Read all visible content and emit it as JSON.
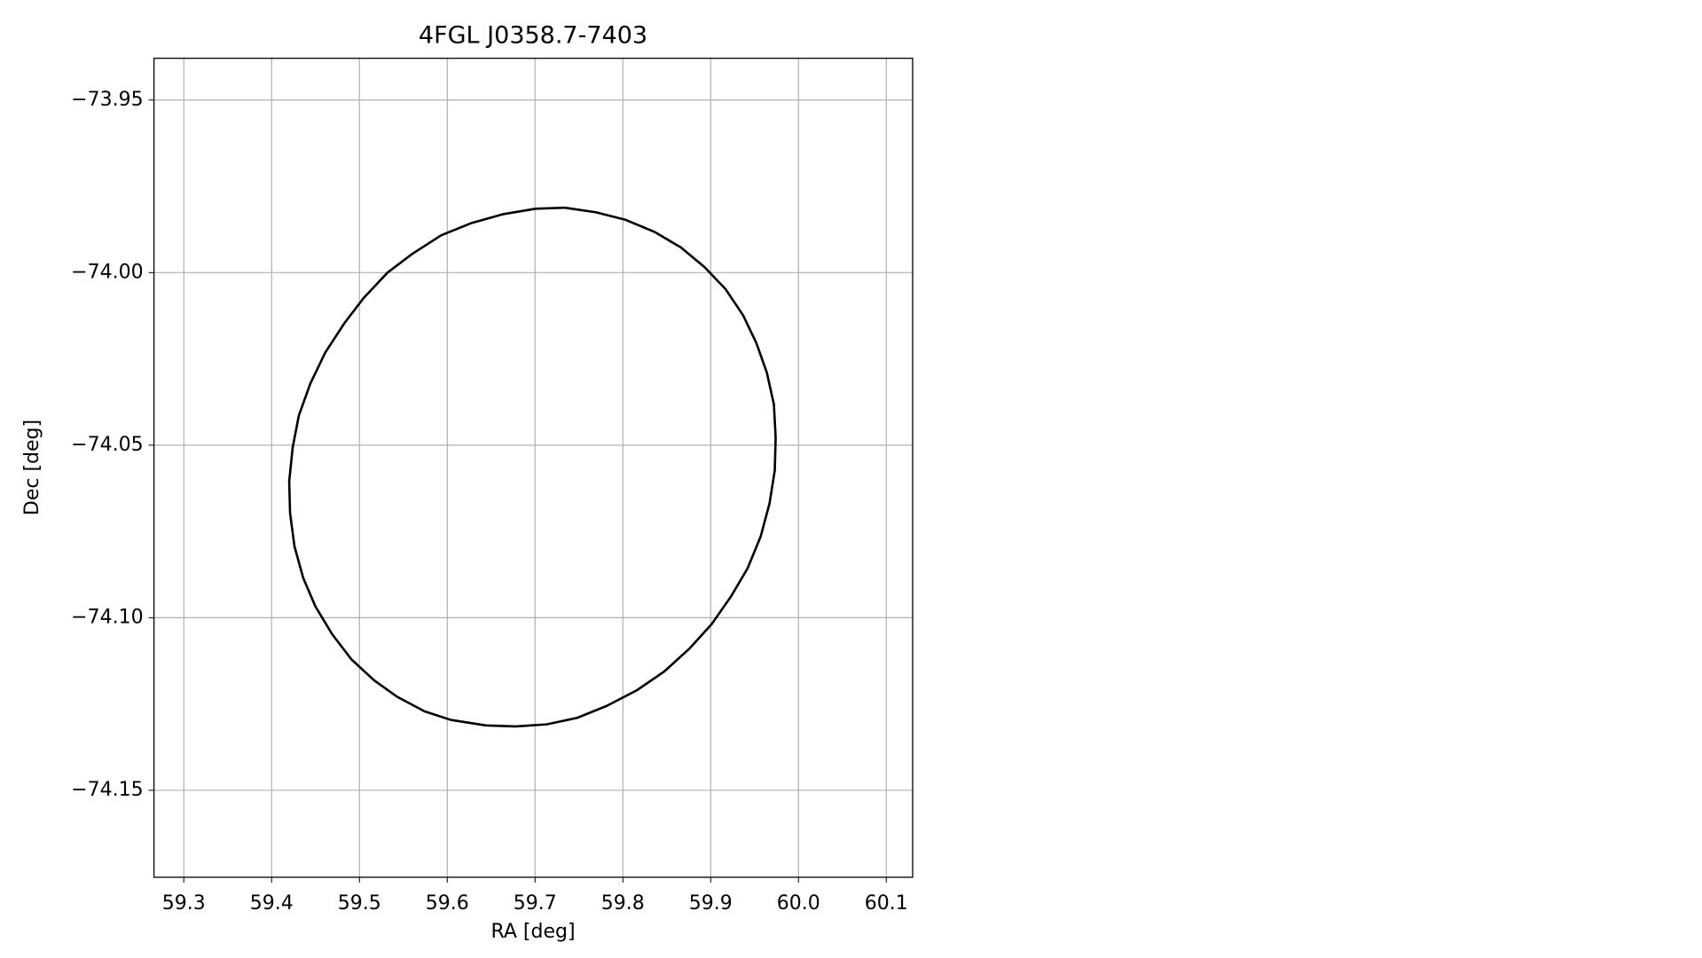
{
  "chart_data": {
    "type": "line",
    "title": "4FGL J0358.7-7403",
    "x_label": "RA [deg]",
    "y_label": "Dec [deg]",
    "color": "#000000",
    "grid": true,
    "x": [
      59.7005,
      59.734,
      59.769,
      59.803,
      59.836,
      59.866,
      59.893,
      59.917,
      59.937,
      59.952,
      59.964,
      59.972,
      59.974,
      59.973,
      59.967,
      59.957,
      59.942,
      59.923,
      59.901,
      59.876,
      59.847,
      59.816,
      59.782,
      59.748,
      59.713,
      59.678,
      59.644,
      59.604,
      59.574,
      59.543,
      59.517,
      59.491,
      59.469,
      59.45,
      59.436,
      59.426,
      59.421,
      59.42,
      59.424,
      59.431,
      59.444,
      59.461,
      59.483,
      59.505,
      59.532,
      59.56,
      59.593,
      59.627,
      59.663,
      59.7005
    ],
    "values": [
      -73.9815,
      -73.9812,
      -73.9825,
      -73.9847,
      -73.9882,
      -73.9927,
      -73.9984,
      -74.0048,
      -74.0124,
      -74.0204,
      -74.029,
      -74.0382,
      -74.0478,
      -74.0573,
      -74.0669,
      -74.0764,
      -74.0857,
      -74.0939,
      -74.1019,
      -74.1089,
      -74.1156,
      -74.121,
      -74.1255,
      -74.129,
      -74.1309,
      -74.1315,
      -74.1312,
      -74.1296,
      -74.1271,
      -74.1229,
      -74.1182,
      -74.1121,
      -74.1048,
      -74.0968,
      -74.0885,
      -74.0793,
      -74.0697,
      -74.0605,
      -74.0506,
      -74.0414,
      -74.0322,
      -74.0232,
      -74.0146,
      -74.0073,
      -74.0,
      -73.9946,
      -73.9892,
      -73.9857,
      -73.9831,
      -73.9815
    ],
    "xlim": [
      59.266,
      60.13
    ],
    "ylim": [
      -74.1752,
      -73.9379
    ],
    "xticks": [
      59.3,
      59.4,
      59.5,
      59.6,
      59.7,
      59.8,
      59.9,
      {
        "value": 60,
        "label": "60.0"
      },
      60.1
    ],
    "yticks": [
      {
        "value": -73.95,
        "label": "−73.95"
      },
      {
        "value": -74,
        "label": "−74.00"
      },
      {
        "value": -74.05,
        "label": "−74.05"
      },
      {
        "value": -74.1,
        "label": "−74.10"
      },
      {
        "value": -74.15,
        "label": "−74.15"
      }
    ]
  }
}
